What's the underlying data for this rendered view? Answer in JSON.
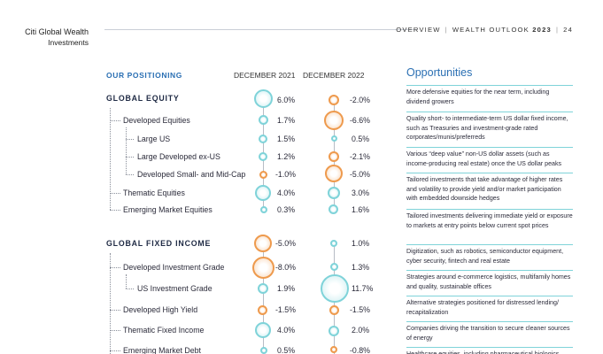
{
  "brand": {
    "line1": "Citi Global Wealth",
    "line2": "Investments"
  },
  "breadcrumb": {
    "section": "OVERVIEW",
    "doc": "WEALTH OUTLOOK",
    "year": "2023",
    "page": "24"
  },
  "table": {
    "heading": "OUR POSITIONING",
    "col1": "DECEMBER 2021",
    "col2": "DECEMBER 2022",
    "rows": [
      {
        "label": "GLOBAL EQUITY",
        "v2021": "6.0%",
        "v2022": "-2.0%"
      },
      {
        "label": "Developed Equities",
        "v2021": "1.7%",
        "v2022": "-6.6%"
      },
      {
        "label": "Large US",
        "v2021": "1.5%",
        "v2022": "0.5%"
      },
      {
        "label": "Large Developed ex-US",
        "v2021": "1.2%",
        "v2022": "-2.1%"
      },
      {
        "label": "Developed Small- and Mid-Cap",
        "v2021": "-1.0%",
        "v2022": "-5.0%"
      },
      {
        "label": "Thematic Equities",
        "v2021": "4.0%",
        "v2022": "3.0%"
      },
      {
        "label": "Emerging Market Equities",
        "v2021": "0.3%",
        "v2022": "1.6%"
      },
      {
        "label": "GLOBAL FIXED INCOME",
        "v2021": "-5.0%",
        "v2022": "1.0%"
      },
      {
        "label": "Developed Investment Grade",
        "v2021": "-8.0%",
        "v2022": "1.3%"
      },
      {
        "label": "US Investment Grade",
        "v2021": "1.9%",
        "v2022": "11.7%"
      },
      {
        "label": "Developed High Yield",
        "v2021": "-1.5%",
        "v2022": "-1.5%"
      },
      {
        "label": "Thematic Fixed Income",
        "v2021": "4.0%",
        "v2022": "2.0%"
      },
      {
        "label": "Emerging Market Debt",
        "v2021": "0.5%",
        "v2022": "-0.8%"
      }
    ]
  },
  "opportunities": {
    "title": "Opportunities",
    "items": [
      "More defensive equities for the near term, including dividend growers",
      "Quality short- to intermediate-term US dollar fixed income, such as Treasuries and investment-grade rated corporates/munis/preferreds",
      "Various “deep value” non-US dollar assets (such as income-producing real estate) once the US dollar peaks",
      "Tailored investments that take advantage of higher rates and volatility to provide yield and/or market participation with embedded downside hedges",
      "Tailored investments delivering immediate yield or exposure to markets at entry points below current spot prices",
      "Digitization, such as robotics, semiconductor equipment, cyber security, fintech and real estate",
      "Strategies around e-commerce logistics, multifamily homes and quality, sustainable offices",
      "Alternative strategies positioned for distressed lending/ recapitalization",
      "Companies driving the transition to secure cleaner sources of energy",
      "Healthcare equities, including pharmaceutical biologics"
    ]
  }
}
